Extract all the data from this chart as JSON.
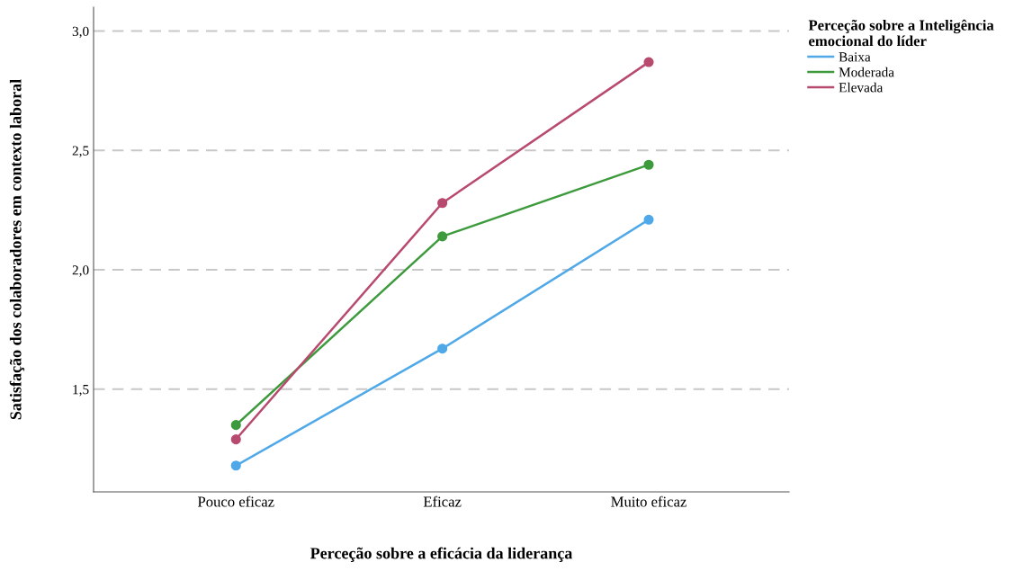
{
  "chart_data": {
    "type": "line",
    "xlabel": "Perceção sobre a eficácia da liderança",
    "ylabel": "Satisfação dos colaboradores em contexto laboral",
    "legend_title": "Perceção sobre a Inteligência\nemocional do líder",
    "categories": [
      "Pouco eficaz",
      "Eficaz",
      "Muito eficaz"
    ],
    "series": [
      {
        "name": "Baixa",
        "color": "#4fa8e8",
        "values": [
          1.18,
          1.67,
          2.21
        ]
      },
      {
        "name": "Moderada",
        "color": "#3d9a3d",
        "values": [
          1.35,
          2.14,
          2.44
        ]
      },
      {
        "name": "Elevada",
        "color": "#b84a6e",
        "values": [
          1.29,
          2.28,
          2.87
        ]
      }
    ],
    "ylim": [
      1.07,
      3.1
    ],
    "yticks": [
      {
        "value": 1.5,
        "label": "1,5"
      },
      {
        "value": 2.0,
        "label": "2,0"
      },
      {
        "value": 2.5,
        "label": "2,5"
      },
      {
        "value": 3.0,
        "label": "3,0"
      }
    ],
    "grid": "y",
    "legend": "top right",
    "marker": "circle",
    "line_style": "solid"
  }
}
